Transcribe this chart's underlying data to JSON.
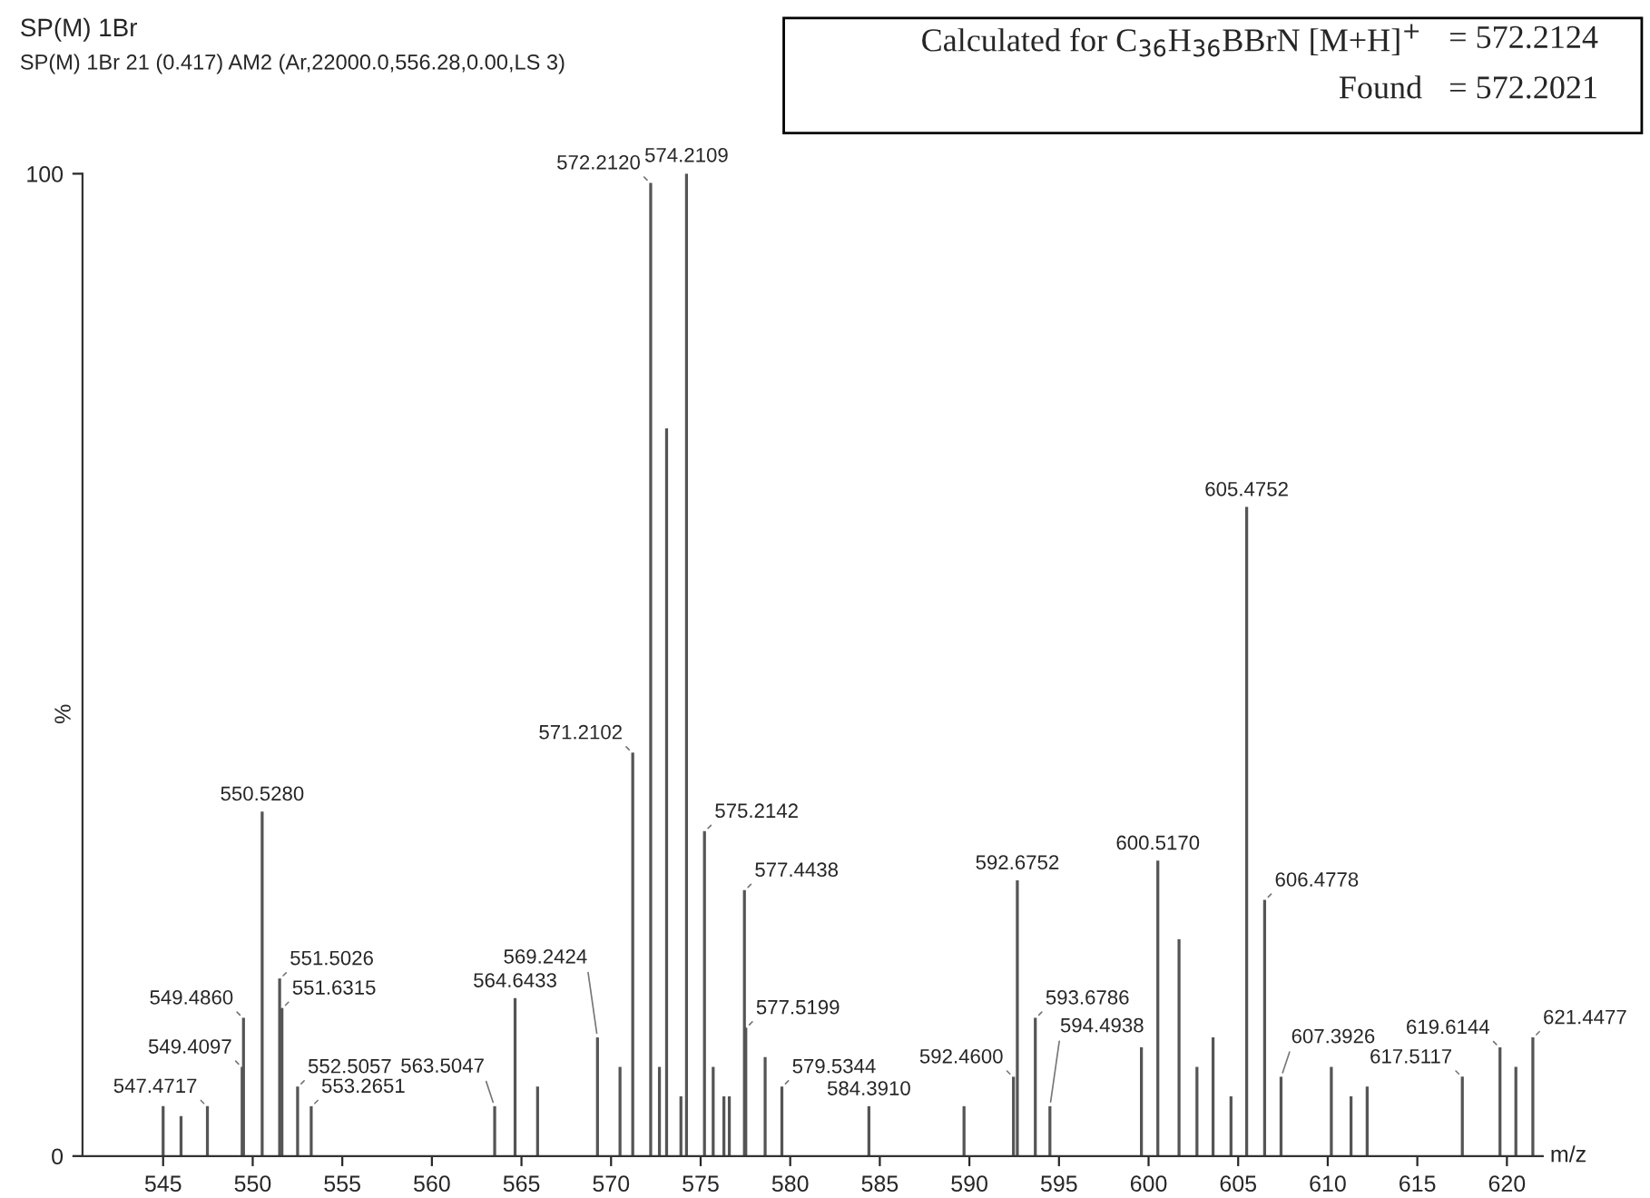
{
  "chart_data": {
    "type": "bar",
    "title": "SP(M) 1Br",
    "subtitle": "SP(M) 1Br 21 (0.417) AM2 (Ar,22000.0,556.28,0.00,LS 3)",
    "xlabel": "m/z",
    "ylabel": "%",
    "x": [
      545.0,
      546.0,
      547.4717,
      549.4097,
      549.486,
      550.528,
      551.5026,
      551.6315,
      552.5057,
      553.2651,
      563.5047,
      564.6433,
      565.9,
      569.2424,
      570.5,
      571.2102,
      572.212,
      572.7,
      573.1,
      573.9,
      574.2109,
      575.2142,
      575.7,
      576.3,
      576.6,
      577.4438,
      577.5199,
      578.6,
      579.5344,
      584.391,
      589.7,
      592.46,
      592.6752,
      593.6786,
      594.4938,
      599.6,
      600.517,
      601.7,
      602.7,
      603.6,
      604.6,
      605.4752,
      606.4778,
      607.3926,
      610.2,
      611.3,
      612.2,
      617.5117,
      619.6144,
      620.5,
      621.4477
    ],
    "values": [
      5,
      4,
      5,
      9,
      14,
      35,
      18,
      15,
      7,
      5,
      5,
      16,
      7,
      12,
      9,
      41,
      99,
      9,
      74,
      6,
      100,
      33,
      9,
      6,
      6,
      27,
      13,
      10,
      7,
      5,
      5,
      8,
      28,
      14,
      5,
      11,
      30,
      22,
      9,
      12,
      6,
      66,
      26,
      8,
      9,
      6,
      7,
      8,
      11,
      9,
      12
    ],
    "color": "#555555",
    "xlim": [
      540.5,
      622
    ],
    "xticks": [
      545,
      550,
      555,
      560,
      565,
      570,
      575,
      580,
      585,
      590,
      595,
      600,
      605,
      610,
      615,
      620
    ],
    "ylim": [
      0,
      100
    ],
    "yticks": [
      0,
      100
    ],
    "grid": false,
    "legend": false,
    "annotations": [
      {
        "text": "547.4717",
        "x": 547.4717,
        "y": 5
      },
      {
        "text": "549.4097",
        "x": 549.4097,
        "y": 9
      },
      {
        "text": "549.4860",
        "x": 549.486,
        "y": 14
      },
      {
        "text": "550.5280",
        "x": 550.528,
        "y": 35
      },
      {
        "text": "551.5026",
        "x": 551.5026,
        "y": 18
      },
      {
        "text": "551.6315",
        "x": 551.6315,
        "y": 15
      },
      {
        "text": "552.5057",
        "x": 552.5057,
        "y": 7
      },
      {
        "text": "553.2651",
        "x": 553.2651,
        "y": 5
      },
      {
        "text": "563.5047",
        "x": 563.5047,
        "y": 5
      },
      {
        "text": "564.6433",
        "x": 564.6433,
        "y": 16
      },
      {
        "text": "569.2424",
        "x": 569.2424,
        "y": 12
      },
      {
        "text": "571.2102",
        "x": 571.2102,
        "y": 41
      },
      {
        "text": "572.2120",
        "x": 572.212,
        "y": 99
      },
      {
        "text": "574.2109",
        "x": 574.2109,
        "y": 100
      },
      {
        "text": "575.2142",
        "x": 575.2142,
        "y": 33
      },
      {
        "text": "577.4438",
        "x": 577.4438,
        "y": 27
      },
      {
        "text": "577.5199",
        "x": 577.5199,
        "y": 13
      },
      {
        "text": "579.5344",
        "x": 579.5344,
        "y": 7
      },
      {
        "text": "584.3910",
        "x": 584.391,
        "y": 5
      },
      {
        "text": "592.4600",
        "x": 592.46,
        "y": 8
      },
      {
        "text": "592.6752",
        "x": 592.6752,
        "y": 28
      },
      {
        "text": "593.6786",
        "x": 593.6786,
        "y": 14
      },
      {
        "text": "594.4938",
        "x": 594.4938,
        "y": 5
      },
      {
        "text": "600.5170",
        "x": 600.517,
        "y": 30
      },
      {
        "text": "605.4752",
        "x": 605.4752,
        "y": 66
      },
      {
        "text": "606.4778",
        "x": 606.4778,
        "y": 26
      },
      {
        "text": "607.3926",
        "x": 607.3926,
        "y": 8
      },
      {
        "text": "617.5117",
        "x": 617.5117,
        "y": 8
      },
      {
        "text": "619.6144",
        "x": 619.6144,
        "y": 11
      },
      {
        "text": "621.4477",
        "x": 621.4477,
        "y": 12
      },
      "Calculated for C$_{36}$H$_{36}$BBrN [M+H]$^{+}$",
      "= 572.2124",
      "Found",
      "= 572.2021"
    ]
  }
}
